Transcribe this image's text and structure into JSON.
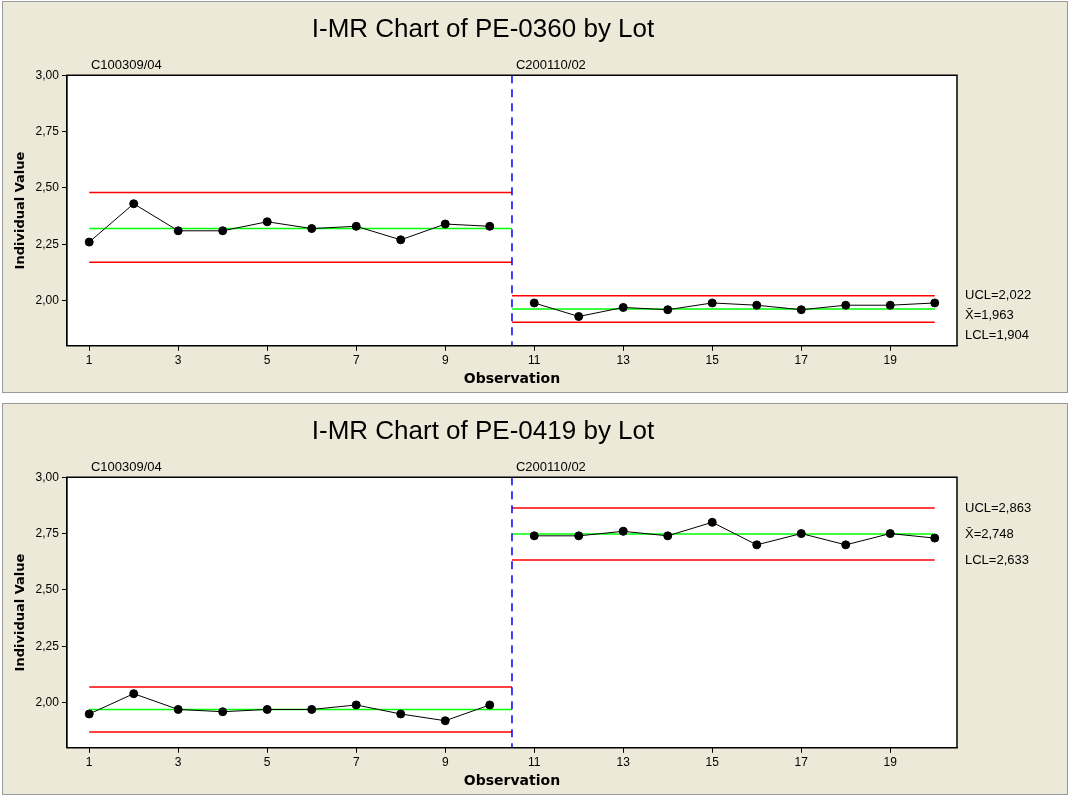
{
  "chart_data": [
    {
      "type": "line",
      "title": "I-MR Chart of PE-0360 by Lot",
      "xlabel": "Observation",
      "ylabel": "Individual Value",
      "series": [
        {
          "color": "#000000",
          "x": [
            1,
            2,
            3,
            4,
            5,
            6,
            7,
            8,
            9,
            10
          ],
          "values": [
            2.26,
            2.43,
            2.31,
            2.31,
            2.35,
            2.32,
            2.33,
            2.27,
            2.34,
            2.33
          ]
        },
        {
          "color": "#000000",
          "x": [
            11,
            12,
            13,
            14,
            15,
            16,
            17,
            18,
            19,
            20
          ],
          "values": [
            1.99,
            1.93,
            1.97,
            1.96,
            1.99,
            1.98,
            1.96,
            1.98,
            1.98,
            1.99
          ]
        },
        {
          "type": "line",
          "marker": "none",
          "color": "#ff0000",
          "x": [
            1,
            10.5
          ],
          "values": [
            2.48,
            2.48
          ]
        },
        {
          "type": "line",
          "marker": "none",
          "color": "#00ff00",
          "x": [
            1,
            10.5
          ],
          "values": [
            2.32,
            2.32
          ]
        },
        {
          "type": "line",
          "marker": "none",
          "color": "#ff0000",
          "x": [
            1,
            10.5
          ],
          "values": [
            2.17,
            2.17
          ]
        },
        {
          "type": "line",
          "marker": "none",
          "color": "#ff0000",
          "x": [
            10.5,
            20
          ],
          "values": [
            2.022,
            2.022
          ]
        },
        {
          "type": "line",
          "marker": "none",
          "color": "#00ff00",
          "x": [
            10.5,
            20
          ],
          "values": [
            1.963,
            1.963
          ]
        },
        {
          "type": "line",
          "marker": "none",
          "color": "#ff0000",
          "x": [
            10.5,
            20
          ],
          "values": [
            1.904,
            1.904
          ]
        }
      ],
      "xlim": [
        0.5,
        20.5
      ],
      "xticks": [
        1,
        3,
        5,
        7,
        9,
        11,
        13,
        15,
        17,
        19
      ],
      "ylim": [
        1.8,
        3.0
      ],
      "yticks": [
        {
          "value": 2,
          "label": "2,00"
        },
        {
          "value": 2.25,
          "label": "2,25"
        },
        {
          "value": 2.5,
          "label": "2,50"
        },
        {
          "value": 2.75,
          "label": "2,75"
        },
        {
          "value": 3,
          "label": "3,00"
        }
      ],
      "ref_lines": [
        {
          "axis": "x",
          "value": 10.5,
          "color": "#0000ff",
          "line_style": "dashed"
        }
      ],
      "annotations": [
        "C100309/04",
        "C200110/02",
        "UCL=2,022",
        "X̄=1,963",
        "LCL=1,904"
      ],
      "marker": "circle",
      "line_style": "solid",
      "grid": false,
      "legend": false
    },
    {
      "type": "line",
      "title": "I-MR Chart of PE-0419 by Lot",
      "xlabel": "Observation",
      "ylabel": "Individual Value",
      "series": [
        {
          "color": "#000000",
          "x": [
            1,
            2,
            3,
            4,
            5,
            6,
            7,
            8,
            9,
            10
          ],
          "values": [
            1.95,
            2.04,
            1.97,
            1.96,
            1.97,
            1.97,
            1.99,
            1.95,
            1.92,
            1.99
          ]
        },
        {
          "color": "#000000",
          "x": [
            11,
            12,
            13,
            14,
            15,
            16,
            17,
            18,
            19,
            20
          ],
          "values": [
            2.74,
            2.74,
            2.76,
            2.74,
            2.8,
            2.7,
            2.75,
            2.7,
            2.75,
            2.73
          ]
        },
        {
          "type": "line",
          "marker": "none",
          "color": "#ff0000",
          "x": [
            1,
            10.5
          ],
          "values": [
            2.07,
            2.07
          ]
        },
        {
          "type": "line",
          "marker": "none",
          "color": "#00ff00",
          "x": [
            1,
            10.5
          ],
          "values": [
            1.97,
            1.97
          ]
        },
        {
          "type": "line",
          "marker": "none",
          "color": "#ff0000",
          "x": [
            1,
            10.5
          ],
          "values": [
            1.87,
            1.87
          ]
        },
        {
          "type": "line",
          "marker": "none",
          "color": "#ff0000",
          "x": [
            10.5,
            20
          ],
          "values": [
            2.863,
            2.863
          ]
        },
        {
          "type": "line",
          "marker": "none",
          "color": "#00ff00",
          "x": [
            10.5,
            20
          ],
          "values": [
            2.748,
            2.748
          ]
        },
        {
          "type": "line",
          "marker": "none",
          "color": "#ff0000",
          "x": [
            10.5,
            20
          ],
          "values": [
            2.633,
            2.633
          ]
        }
      ],
      "xlim": [
        0.5,
        20.5
      ],
      "xticks": [
        1,
        3,
        5,
        7,
        9,
        11,
        13,
        15,
        17,
        19
      ],
      "ylim": [
        1.8,
        3.0
      ],
      "yticks": [
        {
          "value": 2,
          "label": "2,00"
        },
        {
          "value": 2.25,
          "label": "2,25"
        },
        {
          "value": 2.5,
          "label": "2,50"
        },
        {
          "value": 2.75,
          "label": "2,75"
        },
        {
          "value": 3,
          "label": "3,00"
        }
      ],
      "ref_lines": [
        {
          "axis": "x",
          "value": 10.5,
          "color": "#0000ff",
          "line_style": "dashed"
        }
      ],
      "annotations": [
        "C100309/04",
        "C200110/02",
        "UCL=2,863",
        "X̄=2,748",
        "LCL=2,633"
      ],
      "marker": "circle",
      "line_style": "solid",
      "grid": false,
      "legend": false
    }
  ]
}
